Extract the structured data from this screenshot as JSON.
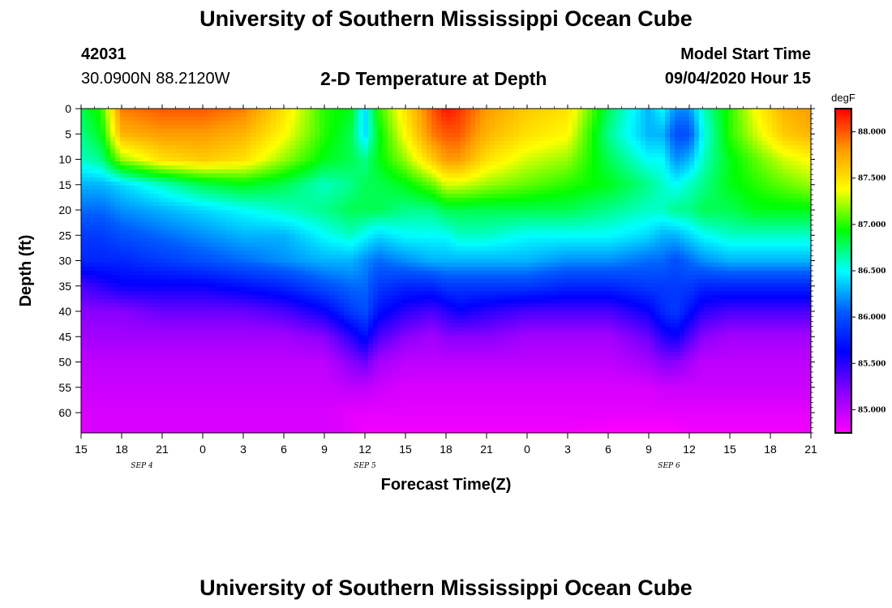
{
  "header": {
    "title": "University of Southern Mississippi Ocean Cube",
    "station_id": "42031",
    "coords": "30.0900N 88.2120W",
    "plot_title": "2-D Temperature at Depth",
    "model_label": "Model Start Time",
    "model_time": "09/04/2020 Hour 15"
  },
  "footer": {
    "title": "University of Southern Mississippi Ocean Cube"
  },
  "colors": {
    "ramp": [
      "#ff00ff",
      "#8c00ff",
      "#0000ff",
      "#005cff",
      "#00ffff",
      "#00ff00",
      "#ffff00",
      "#ff9900",
      "#ff0000"
    ]
  },
  "chart_data": {
    "type": "heatmap",
    "title": "2-D Temperature at Depth",
    "xlabel": "Forecast Time(Z)",
    "ylabel": "Depth (ft)",
    "xlim": [
      0,
      54
    ],
    "ylim": [
      0,
      64
    ],
    "x_tick_labels": [
      "15",
      "18",
      "21",
      "0",
      "3",
      "6",
      "9",
      "12",
      "15",
      "18",
      "21",
      "0",
      "3",
      "6",
      "9",
      "12",
      "15",
      "18",
      "21"
    ],
    "y_ticks": [
      0,
      5,
      10,
      15,
      20,
      25,
      30,
      35,
      40,
      45,
      50,
      55,
      60
    ],
    "date_labels": [
      {
        "text": "SEP 4",
        "hour": 4.5
      },
      {
        "text": "SEP 5",
        "hour": 21
      },
      {
        "text": "SEP 6",
        "hour": 43.5
      }
    ],
    "colorbar": {
      "unit": "degF",
      "min": 84.75,
      "max": 88.25,
      "tick_values": [
        85.0,
        85.5,
        86.0,
        86.5,
        87.0,
        87.5,
        88.0
      ],
      "tick_labels": [
        "85.000",
        "85.500",
        "86.000",
        "86.500",
        "87.000",
        "87.500",
        "88.000"
      ]
    },
    "temperature_grid": {
      "hours": [
        0,
        1.5,
        3,
        6,
        9,
        12,
        15,
        18,
        20,
        21,
        22,
        24,
        26,
        27,
        28,
        30,
        33,
        36,
        39,
        42,
        43,
        44,
        45,
        46,
        48,
        50,
        52,
        54
      ],
      "depths": [
        0,
        5,
        10,
        15,
        20,
        25,
        30,
        35,
        40,
        45,
        50,
        55,
        60,
        64
      ],
      "values": [
        [
          86.8,
          87.0,
          87.9,
          88.0,
          88.0,
          87.9,
          87.5,
          87.0,
          86.9,
          86.4,
          87.0,
          87.5,
          88.0,
          88.2,
          88.1,
          87.8,
          87.6,
          87.5,
          86.8,
          86.3,
          86.5,
          86.2,
          86.2,
          86.6,
          87.0,
          87.4,
          87.7,
          87.8
        ],
        [
          86.7,
          86.9,
          87.7,
          87.8,
          87.8,
          87.7,
          87.4,
          87.0,
          86.8,
          86.4,
          86.9,
          87.4,
          87.9,
          88.0,
          88.0,
          87.7,
          87.5,
          87.4,
          86.7,
          86.3,
          86.3,
          86.0,
          86.0,
          86.5,
          87.0,
          87.3,
          87.6,
          87.7
        ],
        [
          86.6,
          86.7,
          87.2,
          87.5,
          87.6,
          87.5,
          87.2,
          86.9,
          86.8,
          86.7,
          86.9,
          87.2,
          87.6,
          87.8,
          87.8,
          87.5,
          87.3,
          87.2,
          86.8,
          86.5,
          86.5,
          86.2,
          86.3,
          86.6,
          86.9,
          87.1,
          87.3,
          87.4
        ],
        [
          86.3,
          86.3,
          86.4,
          86.6,
          86.8,
          86.9,
          86.8,
          86.6,
          86.7,
          86.8,
          86.8,
          86.9,
          87.1,
          87.3,
          87.3,
          87.2,
          87.1,
          87.0,
          86.9,
          86.7,
          86.6,
          86.5,
          86.6,
          86.7,
          86.9,
          87.0,
          87.1,
          87.2
        ],
        [
          86.1,
          86.1,
          86.2,
          86.3,
          86.4,
          86.5,
          86.6,
          86.7,
          86.8,
          86.8,
          86.8,
          86.7,
          86.7,
          86.8,
          86.8,
          86.8,
          86.8,
          86.8,
          86.7,
          86.6,
          86.6,
          86.7,
          86.7,
          86.8,
          86.8,
          86.9,
          86.9,
          86.9
        ],
        [
          85.9,
          85.9,
          86.0,
          86.1,
          86.2,
          86.3,
          86.3,
          86.5,
          86.6,
          86.5,
          86.4,
          86.5,
          86.5,
          86.5,
          86.6,
          86.6,
          86.5,
          86.5,
          86.5,
          86.4,
          86.3,
          86.3,
          86.4,
          86.5,
          86.6,
          86.6,
          86.6,
          86.6
        ],
        [
          85.8,
          85.8,
          85.8,
          85.9,
          86.0,
          86.1,
          86.2,
          86.3,
          86.3,
          86.2,
          86.1,
          86.2,
          86.3,
          86.3,
          86.3,
          86.3,
          86.3,
          86.2,
          86.2,
          86.1,
          86.1,
          86.0,
          86.1,
          86.2,
          86.3,
          86.3,
          86.3,
          86.3
        ],
        [
          85.4,
          85.5,
          85.6,
          85.6,
          85.6,
          85.7,
          85.8,
          86.0,
          86.1,
          86.1,
          85.9,
          85.8,
          85.8,
          85.9,
          85.9,
          85.9,
          85.9,
          85.8,
          85.8,
          85.9,
          85.9,
          85.9,
          85.9,
          85.8,
          85.8,
          85.8,
          85.8,
          85.8
        ],
        [
          85.2,
          85.2,
          85.2,
          85.3,
          85.3,
          85.3,
          85.4,
          85.6,
          85.9,
          86.0,
          85.7,
          85.5,
          85.4,
          85.5,
          85.6,
          85.5,
          85.4,
          85.4,
          85.4,
          85.6,
          85.8,
          85.9,
          85.7,
          85.5,
          85.4,
          85.4,
          85.4,
          85.4
        ],
        [
          85.1,
          85.1,
          85.1,
          85.1,
          85.1,
          85.1,
          85.1,
          85.2,
          85.5,
          85.7,
          85.4,
          85.2,
          85.1,
          85.2,
          85.2,
          85.2,
          85.1,
          85.1,
          85.1,
          85.3,
          85.5,
          85.6,
          85.4,
          85.2,
          85.1,
          85.1,
          85.1,
          85.1
        ],
        [
          85.0,
          85.0,
          85.0,
          85.0,
          85.0,
          85.0,
          85.0,
          85.0,
          85.2,
          85.3,
          85.1,
          85.0,
          85.0,
          85.0,
          85.0,
          85.0,
          85.0,
          85.0,
          85.0,
          85.1,
          85.2,
          85.2,
          85.1,
          85.0,
          85.0,
          85.0,
          85.0,
          85.0
        ],
        [
          84.95,
          84.95,
          84.95,
          84.95,
          84.95,
          84.95,
          84.95,
          84.95,
          85.0,
          85.0,
          84.95,
          84.9,
          84.9,
          84.9,
          84.9,
          84.9,
          84.9,
          84.9,
          84.9,
          84.9,
          84.95,
          84.95,
          84.95,
          84.95,
          84.95,
          84.95,
          84.95,
          84.95
        ],
        [
          84.9,
          84.9,
          84.9,
          84.9,
          84.9,
          84.9,
          84.9,
          84.9,
          84.85,
          84.85,
          84.85,
          84.85,
          84.85,
          84.85,
          84.85,
          84.85,
          84.85,
          84.85,
          84.85,
          84.85,
          84.85,
          84.85,
          84.85,
          84.85,
          84.85,
          84.85,
          84.85,
          84.85
        ],
        [
          84.9,
          84.9,
          84.9,
          84.9,
          84.9,
          84.9,
          84.9,
          84.9,
          84.85,
          84.8,
          84.8,
          84.8,
          84.8,
          84.8,
          84.8,
          84.8,
          84.8,
          84.8,
          84.75,
          84.75,
          84.75,
          84.75,
          84.8,
          84.8,
          84.8,
          84.8,
          84.8,
          84.8
        ]
      ]
    }
  }
}
